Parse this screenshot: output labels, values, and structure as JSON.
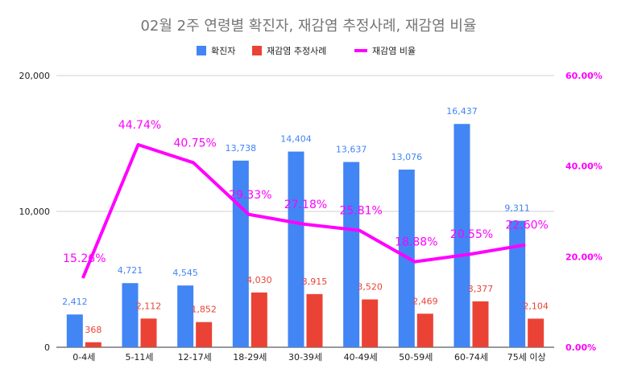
{
  "chart_data": {
    "type": "bar",
    "title": "02월 2주 연령별 확진자, 재감염 추정사례, 재감염 비율",
    "categories": [
      "0-4세",
      "5-11세",
      "12-17세",
      "18-29세",
      "30-39세",
      "40-49세",
      "50-59세",
      "60-74세",
      "75세 이상"
    ],
    "series": [
      {
        "name": "확진자",
        "type": "bar",
        "axis": "left",
        "color": "#4285f4",
        "values": [
          2412,
          4721,
          4545,
          13738,
          14404,
          13637,
          13076,
          16437,
          9311
        ],
        "labels": [
          "2,412",
          "4,721",
          "4,545",
          "13,738",
          "14,404",
          "13,637",
          "13,076",
          "16,437",
          "9,311"
        ]
      },
      {
        "name": "재감염 추정사례",
        "type": "bar",
        "axis": "left",
        "color": "#ea4335",
        "values": [
          368,
          2112,
          1852,
          4030,
          3915,
          3520,
          2469,
          3377,
          2104
        ],
        "labels": [
          "368",
          "2,112",
          "1,852",
          "4,030",
          "3,915",
          "3,520",
          "2,469",
          "3,377",
          "2,104"
        ]
      },
      {
        "name": "재감염 비율",
        "type": "line",
        "axis": "right",
        "color": "#ff00ff",
        "values": [
          15.26,
          44.74,
          40.75,
          29.33,
          27.18,
          25.81,
          18.88,
          20.55,
          22.6
        ],
        "labels": [
          "15.26%",
          "44.74%",
          "40.75%",
          "29.33%",
          "27.18%",
          "25.81%",
          "18.88%",
          "20.55%",
          "22.60%"
        ]
      }
    ],
    "y_left": {
      "min": 0,
      "max": 20000,
      "ticks": [
        0,
        10000,
        20000
      ],
      "tick_labels": [
        "0",
        "10,000",
        "20,000"
      ]
    },
    "y_right": {
      "min": 0,
      "max": 60,
      "ticks": [
        0,
        20,
        40,
        60
      ],
      "tick_labels": [
        "0.00%",
        "20.00%",
        "40.00%",
        "60.00%"
      ]
    },
    "legend_position": "top",
    "grid": true
  }
}
